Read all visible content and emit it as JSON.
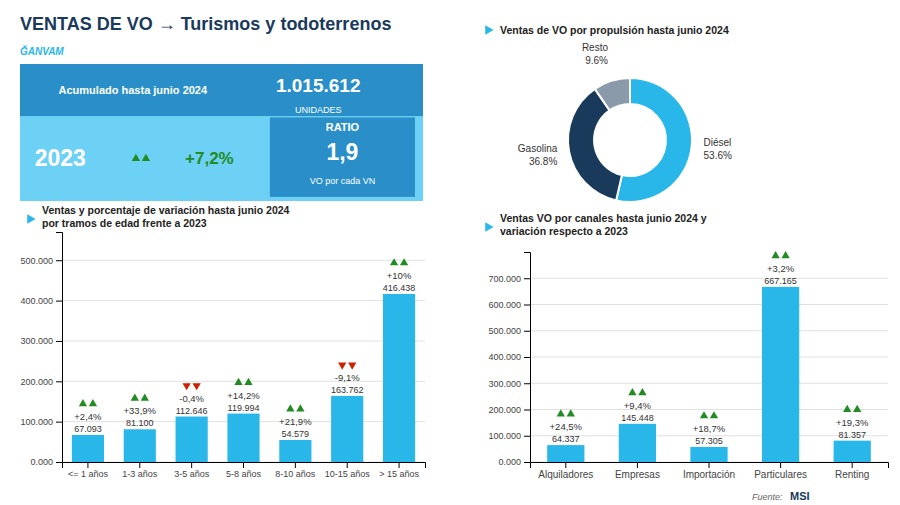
{
  "title": "VENTAS DE VO → Turismos y todoterrenos",
  "annotations": [
    "ĞANVAM",
    "Acumulado hasta junio 2024",
    "1.015.612",
    "UNIDADES",
    "2023",
    "+7,2%",
    "RATIO",
    "1,9",
    "VO por cada VN",
    "Fuente:",
    "MSI"
  ],
  "chart_data": [
    {
      "type": "bar",
      "title": "Ventas y porcentaje de variación hasta junio 2024",
      "subtitle": "por tramos de edad frente a 2023",
      "categories": [
        "<= 1 años",
        "1-3 años",
        "3-5 años",
        "5-8 años",
        "8-10 años",
        "10-15 años",
        "> 15 años"
      ],
      "values": [
        67093,
        81100,
        112646,
        119994,
        54579,
        163762,
        416438
      ],
      "value_labels": [
        "67.093",
        "81.100",
        "112.646",
        "119.994",
        "54.579",
        "163.762",
        "416.438"
      ],
      "changes": [
        2.4,
        33.9,
        -0.4,
        14.2,
        21.9,
        -9.1,
        10
      ],
      "change_labels": [
        "+2,4%",
        "+33,9%",
        "-0,4%",
        "+14,2%",
        "+21,9%",
        "-9,1%",
        "+10%"
      ],
      "color": "#29b6e8",
      "ylim": [
        0,
        570000
      ],
      "yticks": [
        {
          "value": 0,
          "label": "0.000"
        },
        {
          "value": 100000,
          "label": "100.000"
        },
        {
          "value": 200000,
          "label": "200.000"
        },
        {
          "value": 300000,
          "label": "300.000"
        },
        {
          "value": 400000,
          "label": "400.000"
        },
        {
          "value": 500000,
          "label": "500.000"
        }
      ],
      "grid": true,
      "data_labels": true
    },
    {
      "type": "pie",
      "title": "Ventas de VO por propulsión hasta junio 2024",
      "categories": [
        "Diésel",
        "Gasolina",
        "Resto"
      ],
      "values": [
        53.6,
        36.8,
        9.6
      ],
      "value_labels": [
        "53.6%",
        "36.8%",
        "9.6%"
      ],
      "colors": [
        "#29b6e8",
        "#1a3a5c",
        "#8a9aaa"
      ],
      "data_labels": true
    },
    {
      "type": "bar",
      "title": "Ventas VO por canales hasta junio 2024 y",
      "subtitle": "variación respecto a 2023",
      "categories": [
        "Alquiladores",
        "Empresas",
        "Importación",
        "Particulares",
        "Renting"
      ],
      "values": [
        64337,
        145448,
        57305,
        667165,
        81357
      ],
      "value_labels": [
        "64.337",
        "145.448",
        "57.305",
        "667.165",
        "81.357"
      ],
      "changes": [
        24.5,
        9.4,
        18.7,
        3.2,
        19.3
      ],
      "change_labels": [
        "+24,5%",
        "+9,4%",
        "+18,7%",
        "+3,2%",
        "+19,3%"
      ],
      "color": "#29b6e8",
      "ylim": [
        0,
        800000
      ],
      "yticks": [
        {
          "value": 0,
          "label": "0.000"
        },
        {
          "value": 100000,
          "label": "100.000"
        },
        {
          "value": 200000,
          "label": "200.000"
        },
        {
          "value": 300000,
          "label": "300.000"
        },
        {
          "value": 400000,
          "label": "400.000"
        },
        {
          "value": 500000,
          "label": "500.000"
        },
        {
          "value": 600000,
          "label": "600.000"
        },
        {
          "value": 700000,
          "label": "700.000"
        }
      ],
      "grid": true,
      "data_labels": true
    }
  ]
}
